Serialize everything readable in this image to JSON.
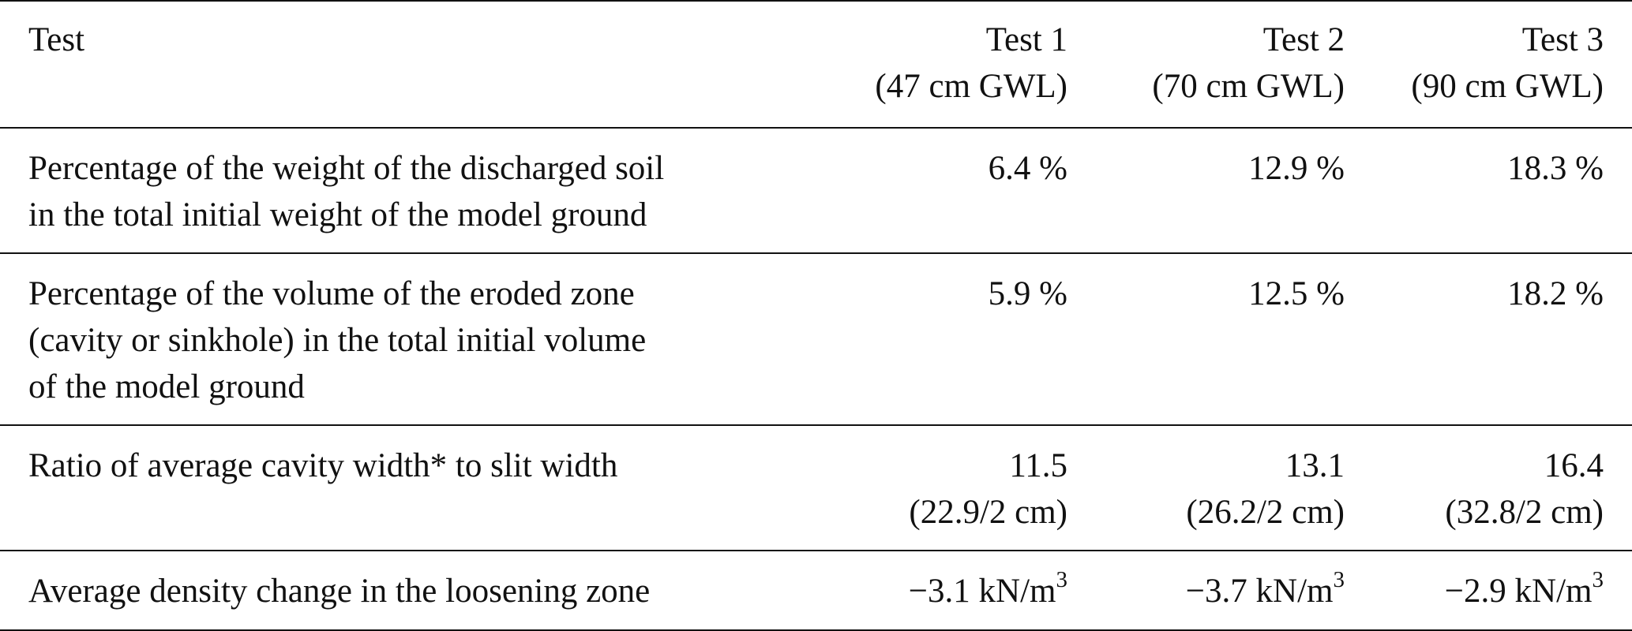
{
  "table": {
    "header": {
      "label": "Test",
      "columns": [
        {
          "name": "Test 1",
          "sub": "(47 cm GWL)"
        },
        {
          "name": "Test 2",
          "sub": "(70 cm GWL)"
        },
        {
          "name": "Test 3",
          "sub": "(90 cm GWL)"
        }
      ]
    },
    "rows": [
      {
        "label_lines": [
          "Percentage of the weight of the discharged soil",
          "in the total initial weight of the model ground"
        ],
        "values": [
          {
            "main": "6.4 %"
          },
          {
            "main": "12.9 %"
          },
          {
            "main": "18.3 %"
          }
        ]
      },
      {
        "label_lines": [
          "Percentage of the volume of the eroded zone",
          "(cavity or sinkhole) in the total initial volume",
          "of the model ground"
        ],
        "values": [
          {
            "main": "5.9 %"
          },
          {
            "main": "12.5 %"
          },
          {
            "main": "18.2 %"
          }
        ]
      },
      {
        "label_lines": [
          "Ratio of average cavity width* to slit width"
        ],
        "values": [
          {
            "main": "11.5",
            "sub": "(22.9/2 cm)"
          },
          {
            "main": "13.1",
            "sub": "(26.2/2 cm)"
          },
          {
            "main": "16.4",
            "sub": "(32.8/2 cm)"
          }
        ]
      },
      {
        "label_lines": [
          "Average density change in the loosening zone"
        ],
        "values": [
          {
            "main": "−3.1 kN/m",
            "exp": "3"
          },
          {
            "main": "−3.7 kN/m",
            "exp": "3"
          },
          {
            "main": "−2.9 kN/m",
            "exp": "3"
          }
        ]
      }
    ]
  }
}
